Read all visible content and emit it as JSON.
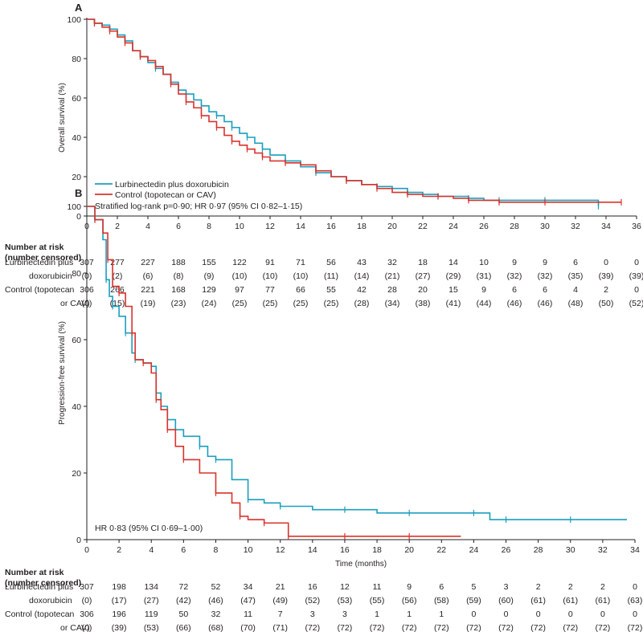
{
  "chart_data": [
    {
      "panel": "A",
      "type": "line",
      "ylabel": "Overall survival (%)",
      "xlabel": "",
      "xlim": [
        0,
        36
      ],
      "ylim": [
        0,
        100
      ],
      "xticks": [
        0,
        2,
        4,
        6,
        8,
        10,
        12,
        14,
        16,
        18,
        20,
        22,
        24,
        26,
        28,
        30,
        32,
        34,
        36
      ],
      "yticks": [
        0,
        20,
        40,
        60,
        80,
        100
      ],
      "legend": [
        "Lurbinectedin plus doxorubicin",
        "Control (topotecan or CAV)"
      ],
      "legend_position": "lower-left",
      "annotation": "Stratified log-rank p=0·90; HR 0·97 (95% CI 0·82–1·15)",
      "colors": {
        "Lurbinectedin plus doxorubicin": "#1a9fbf",
        "Control (topotecan or CAV)": "#d9332b"
      },
      "series": [
        {
          "name": "Lurbinectedin plus doxorubicin",
          "x": [
            0,
            0.5,
            1,
            1.5,
            2,
            2.5,
            3,
            3.5,
            4,
            4.5,
            5,
            5.5,
            6,
            6.5,
            7,
            7.5,
            8,
            8.5,
            9,
            9.5,
            10,
            10.5,
            11,
            11.5,
            12,
            13,
            14,
            15,
            16,
            17,
            18,
            19,
            20,
            21,
            22,
            23,
            24,
            25,
            26,
            27,
            28,
            30,
            32,
            33.5
          ],
          "y": [
            100,
            98,
            97,
            95,
            92,
            89,
            84,
            81,
            78,
            75,
            72,
            68,
            64,
            62,
            59,
            56,
            53,
            51,
            48,
            45,
            42,
            40,
            37,
            34,
            31,
            28,
            25,
            22,
            20,
            18,
            16,
            15,
            14,
            12,
            11,
            10,
            10,
            9,
            8,
            8,
            8,
            8,
            8,
            5
          ]
        },
        {
          "name": "Control (topotecan or CAV)",
          "x": [
            0,
            0.5,
            1,
            1.5,
            2,
            2.5,
            3,
            3.5,
            4,
            4.5,
            5,
            5.5,
            6,
            6.5,
            7,
            7.5,
            8,
            8.5,
            9,
            9.5,
            10,
            10.5,
            11,
            11.5,
            12,
            13,
            14,
            15,
            16,
            17,
            18,
            19,
            20,
            21,
            22,
            23,
            24,
            25,
            26,
            27,
            28,
            30,
            32,
            35
          ],
          "y": [
            100,
            98,
            96,
            94,
            91,
            88,
            84,
            81,
            79,
            76,
            72,
            67,
            62,
            58,
            55,
            51,
            48,
            45,
            41,
            38,
            36,
            34,
            32,
            30,
            28,
            27,
            26,
            23,
            20,
            18,
            16,
            14,
            12,
            11,
            10,
            10,
            9,
            8,
            8,
            7,
            7,
            7,
            7,
            7
          ]
        }
      ],
      "risk_table": {
        "title": "Number at risk (number censored)",
        "columns": [
          0,
          2,
          4,
          6,
          8,
          10,
          12,
          14,
          16,
          18,
          20,
          22,
          24,
          26,
          28,
          30,
          32,
          34,
          36
        ],
        "rows": [
          {
            "label1": "Lurbinectedin plus",
            "label2": "doxorubicin",
            "at_risk": [
              "307",
              "277",
              "227",
              "188",
              "155",
              "122",
              "91",
              "71",
              "56",
              "43",
              "32",
              "18",
              "14",
              "10",
              "9",
              "9",
              "6",
              "0",
              "0"
            ],
            "censored": [
              "(0)",
              "(2)",
              "(6)",
              "(8)",
              "(9)",
              "(10)",
              "(10)",
              "(10)",
              "(11)",
              "(14)",
              "(21)",
              "(27)",
              "(29)",
              "(31)",
              "(32)",
              "(32)",
              "(35)",
              "(39)",
              "(39)"
            ]
          },
          {
            "label1": "Control (topotecan",
            "label2": "or CAV)",
            "at_risk": [
              "306",
              "266",
              "221",
              "168",
              "129",
              "97",
              "77",
              "66",
              "55",
              "42",
              "28",
              "20",
              "15",
              "9",
              "6",
              "6",
              "4",
              "2",
              "0"
            ],
            "censored": [
              "(0)",
              "(15)",
              "(19)",
              "(23)",
              "(24)",
              "(25)",
              "(25)",
              "(25)",
              "(25)",
              "(28)",
              "(34)",
              "(38)",
              "(41)",
              "(44)",
              "(46)",
              "(46)",
              "(48)",
              "(50)",
              "(52)"
            ]
          }
        ]
      }
    },
    {
      "panel": "B",
      "type": "line",
      "ylabel": "Progression-free survival (%)",
      "xlabel": "Time (months)",
      "xlim": [
        0,
        34
      ],
      "ylim": [
        0,
        100
      ],
      "xticks": [
        0,
        2,
        4,
        6,
        8,
        10,
        12,
        14,
        16,
        18,
        20,
        22,
        24,
        26,
        28,
        30,
        32,
        34
      ],
      "yticks": [
        0,
        20,
        40,
        60,
        80,
        100
      ],
      "annotation": "HR 0·83 (95% CI 0·69–1·00)",
      "colors": {
        "Lurbinectedin plus doxorubicin": "#1a9fbf",
        "Control (topotecan or CAV)": "#d9332b"
      },
      "series": [
        {
          "name": "Lurbinectedin plus doxorubicin",
          "x": [
            0,
            0.5,
            1,
            1.2,
            1.4,
            1.6,
            2,
            2.4,
            2.8,
            3,
            3.5,
            4,
            4.3,
            4.6,
            5,
            5.5,
            6,
            7,
            7.5,
            8,
            9,
            10,
            11,
            12,
            14,
            16,
            18,
            20,
            22,
            24,
            25,
            26,
            28,
            30,
            33.5
          ],
          "y": [
            100,
            96,
            90,
            78,
            73,
            70,
            67,
            62,
            56,
            54,
            53,
            52,
            44,
            40,
            36,
            33,
            31,
            28,
            25,
            24,
            18,
            12,
            11,
            10,
            9,
            9,
            8,
            8,
            8,
            8,
            6,
            6,
            6,
            6,
            6
          ]
        },
        {
          "name": "Control (topotecan or CAV)",
          "x": [
            0,
            0.5,
            1,
            1.3,
            1.6,
            2,
            2.4,
            2.8,
            3,
            3.5,
            4,
            4.3,
            4.6,
            5,
            5.5,
            6,
            7,
            8,
            9,
            9.5,
            10,
            11,
            12,
            12.5,
            14,
            16,
            18,
            20,
            23.2
          ],
          "y": [
            100,
            96,
            92,
            84,
            76,
            74,
            70,
            62,
            54,
            53,
            50,
            42,
            39,
            33,
            28,
            24,
            20,
            14,
            11,
            7,
            6,
            5,
            5,
            1,
            1,
            1,
            1,
            1,
            1
          ]
        }
      ],
      "risk_table": {
        "title": "Number at risk (number censored)",
        "columns": [
          0,
          2,
          4,
          6,
          8,
          10,
          12,
          14,
          16,
          18,
          20,
          22,
          24,
          26,
          28,
          30,
          32,
          34
        ],
        "rows": [
          {
            "label1": "Lurbinectedin plus",
            "label2": "doxorubicin",
            "at_risk": [
              "307",
              "198",
              "134",
              "72",
              "52",
              "34",
              "21",
              "16",
              "12",
              "11",
              "9",
              "6",
              "5",
              "3",
              "2",
              "2",
              "2",
              "0"
            ],
            "censored": [
              "(0)",
              "(17)",
              "(27)",
              "(42)",
              "(46)",
              "(47)",
              "(49)",
              "(52)",
              "(53)",
              "(55)",
              "(56)",
              "(58)",
              "(59)",
              "(60)",
              "(61)",
              "(61)",
              "(61)",
              "(63)"
            ]
          },
          {
            "label1": "Control (topotecan",
            "label2": "or CAV)",
            "at_risk": [
              "306",
              "196",
              "119",
              "50",
              "32",
              "11",
              "7",
              "3",
              "3",
              "1",
              "1",
              "1",
              "0",
              "0",
              "0",
              "0",
              "0",
              "0"
            ],
            "censored": [
              "(0)",
              "(39)",
              "(53)",
              "(66)",
              "(68)",
              "(70)",
              "(71)",
              "(72)",
              "(72)",
              "(72)",
              "(72)",
              "(72)",
              "(72)",
              "(72)",
              "(72)",
              "(72)",
              "(72)",
              "(72)"
            ]
          }
        ]
      }
    }
  ]
}
